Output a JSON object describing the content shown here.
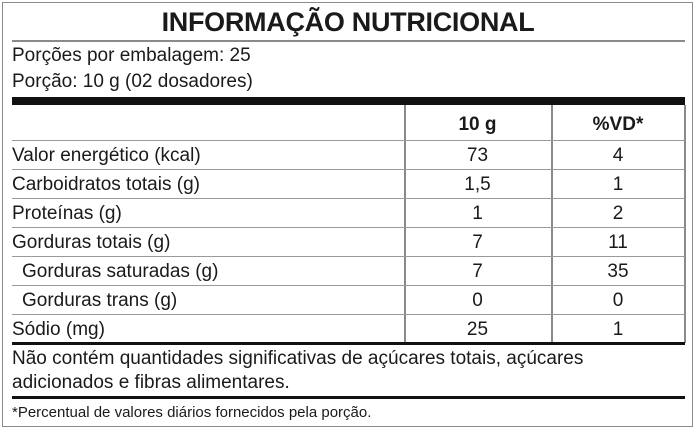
{
  "title": "INFORMAÇÃO NUTRICIONAL",
  "servings_per_package": "Porções por embalagem: 25",
  "serving_size": "Porção: 10 g (02 dosadores)",
  "columns": {
    "amount": "10 g",
    "dv": "%VD*"
  },
  "rows": [
    {
      "label": "Valor energético (kcal)",
      "amount": "73",
      "dv": "4",
      "indent": false
    },
    {
      "label": "Carboidratos totais (g)",
      "amount": "1,5",
      "dv": "1",
      "indent": false
    },
    {
      "label": "Proteínas (g)",
      "amount": "1",
      "dv": "2",
      "indent": false
    },
    {
      "label": "Gorduras totais (g)",
      "amount": "7",
      "dv": "11",
      "indent": false
    },
    {
      "label": "Gorduras saturadas (g)",
      "amount": "7",
      "dv": "35",
      "indent": true
    },
    {
      "label": "Gorduras trans (g)",
      "amount": "0",
      "dv": "0",
      "indent": true
    },
    {
      "label": "Sódio (mg)",
      "amount": "25",
      "dv": "1",
      "indent": false
    }
  ],
  "note_line1": "Não contém quantidades significativas de açúcares totais, açúcares",
  "note_line2": "adicionados e fibras alimentares.",
  "footnote": "*Percentual de valores diários fornecidos pela porção."
}
